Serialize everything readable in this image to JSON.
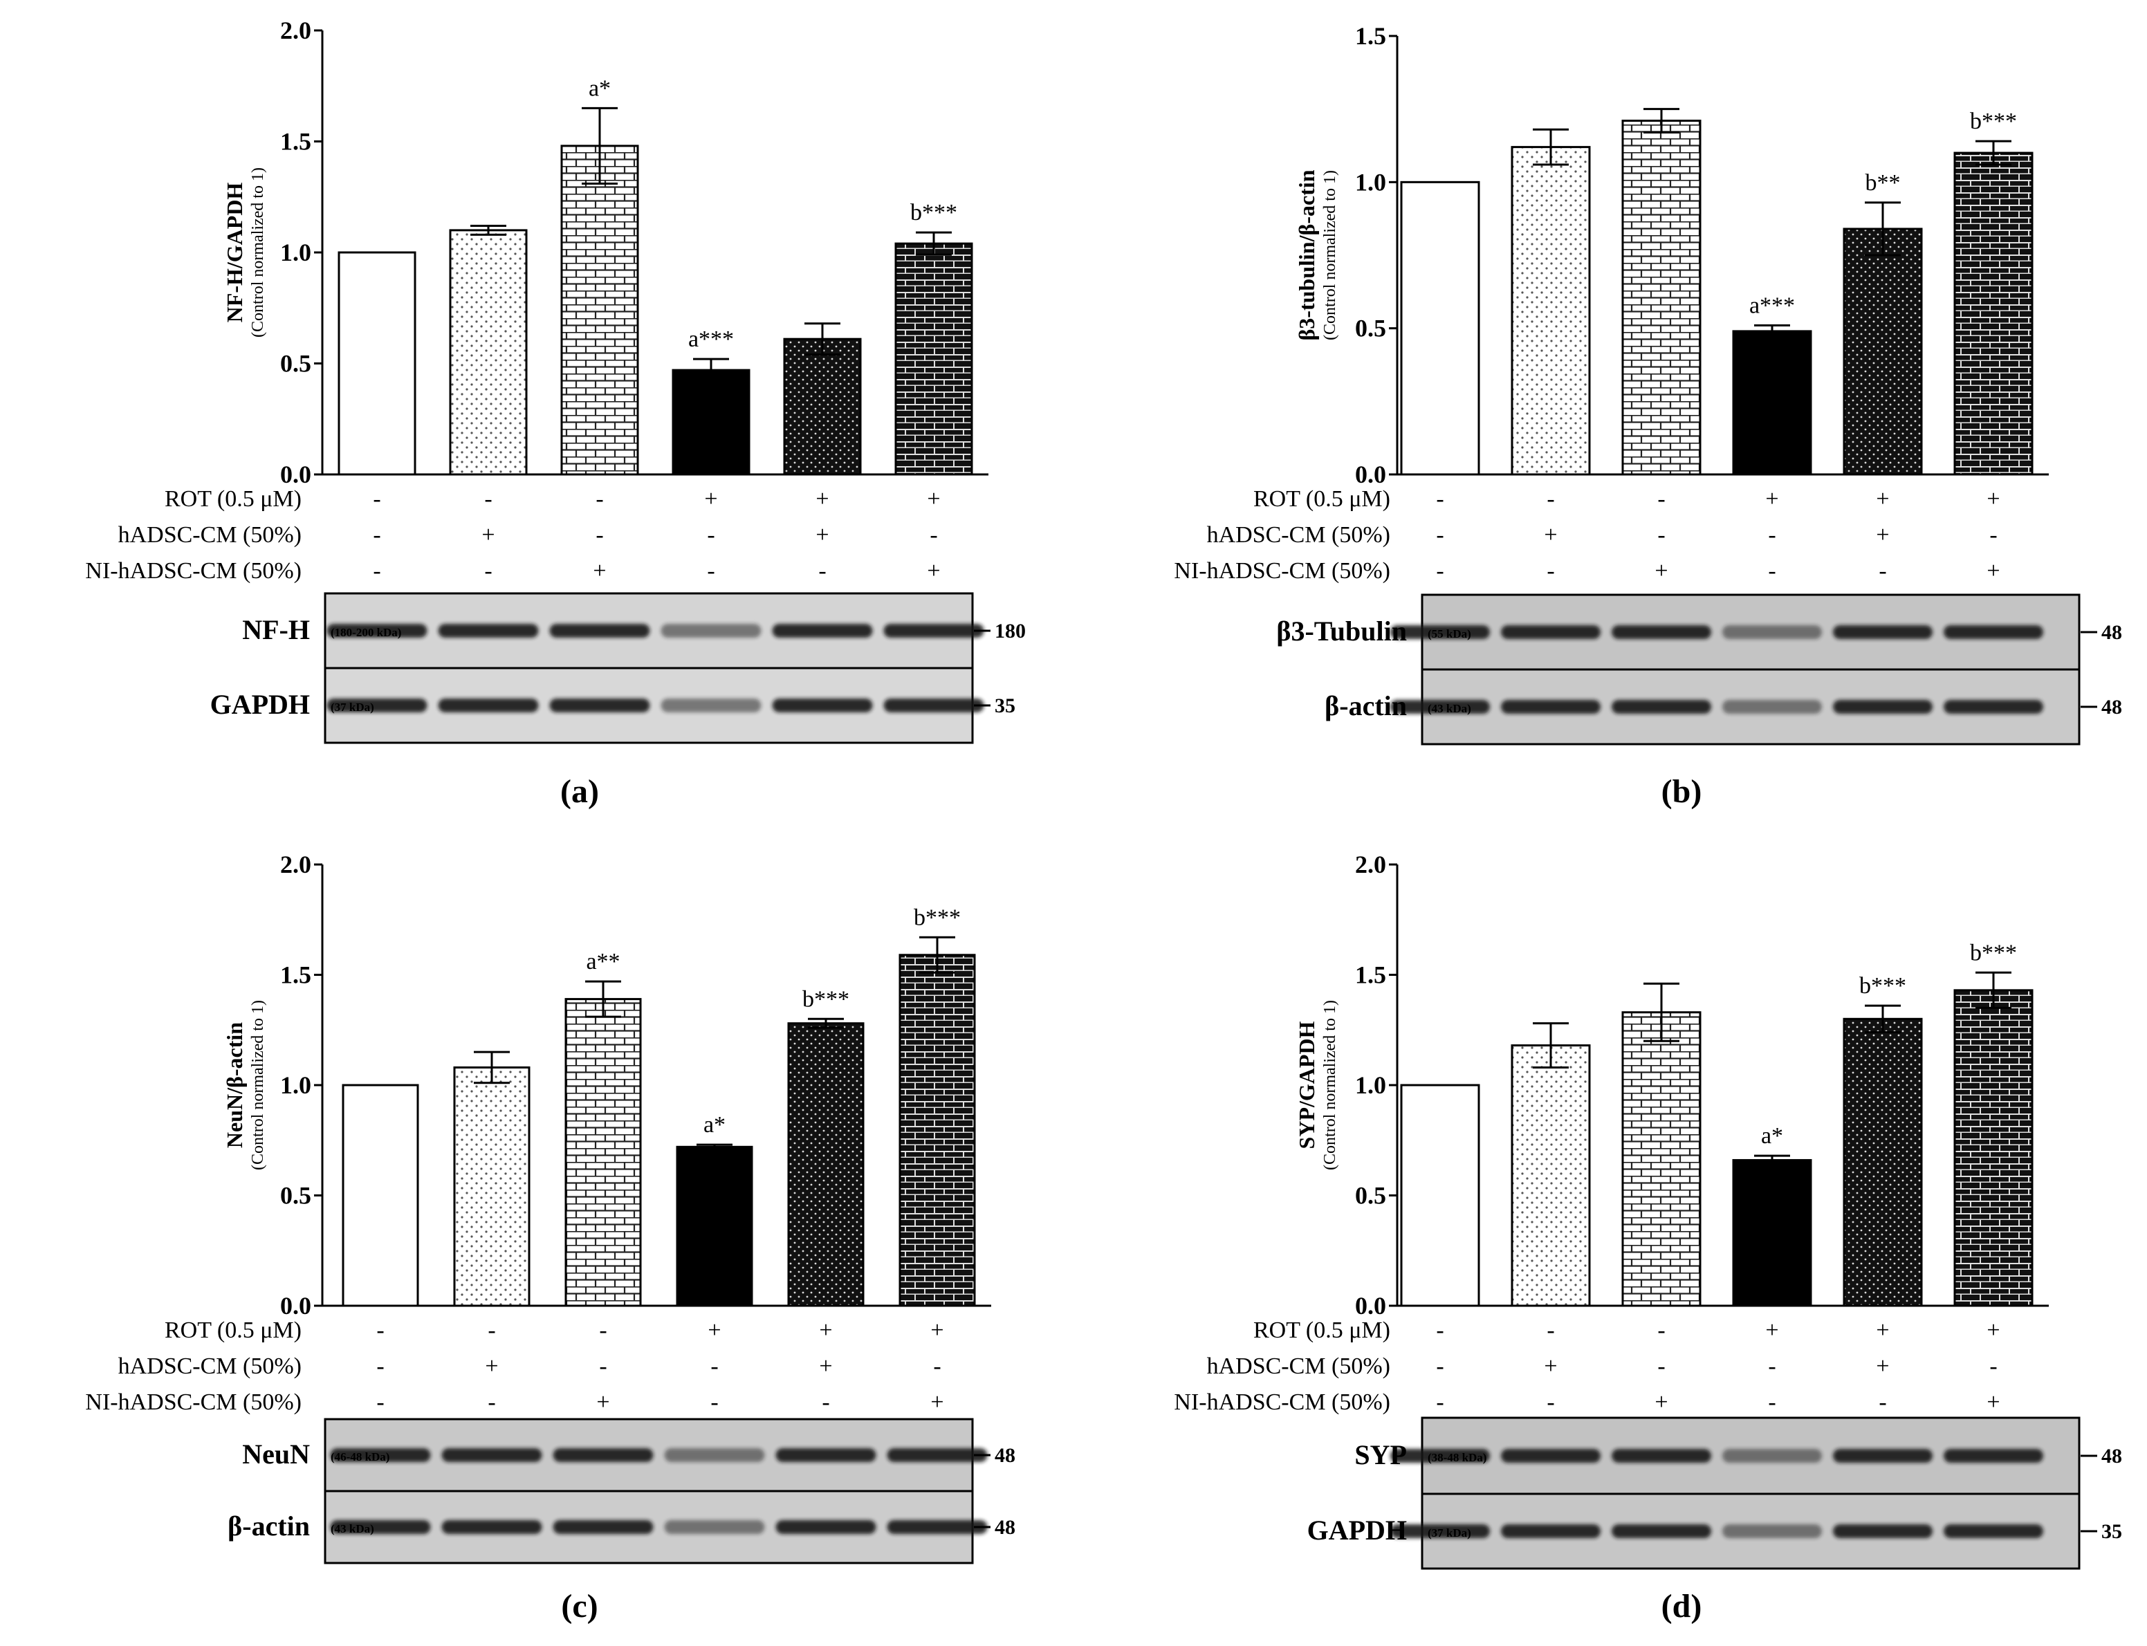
{
  "treatments": {
    "labels": [
      "ROT (0.5 μM)",
      "hADSC-CM (50%)",
      "NI-hADSC-CM (50%)"
    ],
    "signs": [
      [
        "-",
        "-",
        "-",
        "+",
        "+",
        "+"
      ],
      [
        "-",
        "+",
        "-",
        "-",
        "+",
        "-"
      ],
      [
        "-",
        "-",
        "+",
        "-",
        "-",
        "+"
      ]
    ]
  },
  "chart_data": [
    {
      "panel_label": "(a)",
      "type": "bar",
      "ylabel": "NF-H/GAPDH",
      "ylabel_sub": "(Control normalized to 1)",
      "ylim": [
        0,
        2.0
      ],
      "yticks": [
        "0.0",
        "0.5",
        "1.0",
        "1.5",
        "2.0"
      ],
      "values": [
        1.0,
        1.1,
        1.48,
        0.47,
        0.61,
        1.04
      ],
      "errors": [
        0,
        0.02,
        0.17,
        0.05,
        0.07,
        0.05
      ],
      "annotations": [
        "",
        "",
        "a*",
        "a***",
        "",
        "b***"
      ],
      "patterns": [
        "white",
        "dots",
        "brick",
        "black",
        "darkdots",
        "darkbrick"
      ],
      "blots": [
        {
          "name": "NF-H",
          "kda": "(180-200 kDa)",
          "marker": "180",
          "bg": "#d4d4d4"
        },
        {
          "name": "GAPDH",
          "kda": "(37 kDa)",
          "marker": "35",
          "bg": "#d8d8d8"
        }
      ]
    },
    {
      "panel_label": "(b)",
      "type": "bar",
      "ylabel": "β3-tubulin/β-actin",
      "ylabel_sub": "(Control normalized to 1)",
      "ylim": [
        0,
        1.5
      ],
      "yticks": [
        "0.0",
        "0.5",
        "1.0",
        "1.5"
      ],
      "values": [
        1.0,
        1.12,
        1.21,
        0.49,
        0.84,
        1.1
      ],
      "errors": [
        0,
        0.06,
        0.04,
        0.02,
        0.09,
        0.04
      ],
      "annotations": [
        "",
        "",
        "",
        "a***",
        "b**",
        "b***"
      ],
      "patterns": [
        "white",
        "dots",
        "brick",
        "black",
        "darkdots",
        "darkbrick"
      ],
      "blots": [
        {
          "name": "β3-Tubulin",
          "kda": "(55 kDa)",
          "marker": "48",
          "bg": "#c4c4c4"
        },
        {
          "name": "β-actin",
          "kda": "(43 kDa)",
          "marker": "48",
          "bg": "#c9c9c9"
        }
      ]
    },
    {
      "panel_label": "(c)",
      "type": "bar",
      "ylabel": "NeuN/β-actin",
      "ylabel_sub": "(Control normalized to 1)",
      "ylim": [
        0,
        2.0
      ],
      "yticks": [
        "0.0",
        "0.5",
        "1.0",
        "1.5",
        "2.0"
      ],
      "values": [
        1.0,
        1.08,
        1.39,
        0.72,
        1.28,
        1.59
      ],
      "errors": [
        0,
        0.07,
        0.08,
        0.01,
        0.02,
        0.08
      ],
      "annotations": [
        "",
        "",
        "a**",
        "a*",
        "b***",
        "b***"
      ],
      "patterns": [
        "white",
        "dots",
        "brick",
        "black",
        "darkdots",
        "darkbrick"
      ],
      "blots": [
        {
          "name": "NeuN",
          "kda": "(46-48 kDa)",
          "marker": "48",
          "bg": "#c8c8c8"
        },
        {
          "name": "β-actin",
          "kda": "(43 kDa)",
          "marker": "48",
          "bg": "#cccccc"
        }
      ]
    },
    {
      "panel_label": "(d)",
      "type": "bar",
      "ylabel": "SYP/GAPDH",
      "ylabel_sub": "(Control normalized to 1)",
      "ylim": [
        0,
        2.0
      ],
      "yticks": [
        "0.0",
        "0.5",
        "1.0",
        "1.5",
        "2.0"
      ],
      "values": [
        1.0,
        1.18,
        1.33,
        0.66,
        1.3,
        1.43
      ],
      "errors": [
        0,
        0.1,
        0.13,
        0.02,
        0.06,
        0.08
      ],
      "annotations": [
        "",
        "",
        "",
        "a*",
        "b***",
        "b***"
      ],
      "patterns": [
        "white",
        "dots",
        "brick",
        "black",
        "darkdots",
        "darkbrick"
      ],
      "blots": [
        {
          "name": "SYP",
          "kda": "(38-48 kDa)",
          "marker": "48",
          "bg": "#c2c2c2"
        },
        {
          "name": "GAPDH",
          "kda": "(37 kDa)",
          "marker": "35",
          "bg": "#c6c6c6"
        }
      ]
    }
  ]
}
